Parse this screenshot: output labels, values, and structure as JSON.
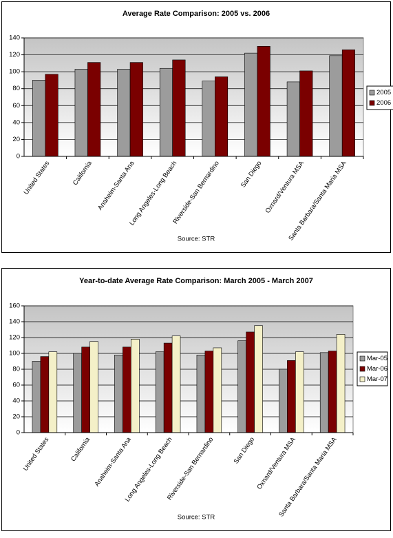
{
  "chart_data": [
    {
      "type": "bar",
      "title": "Average Rate Comparison: 2005 vs. 2006",
      "source": "Source: STR",
      "categories": [
        "United States",
        "California",
        "Anaheim-Santa Ana",
        "Long Angeles-Long Beach",
        "Riverside-San Bernardino",
        "San Diego",
        "Oxnard/Ventura MSA",
        "Santa Barbara/Santa Maria MSA"
      ],
      "series": [
        {
          "name": "2005",
          "color": "#9c9c9c",
          "values": [
            90,
            103,
            103,
            104,
            89,
            122,
            88,
            119
          ]
        },
        {
          "name": "2006",
          "color": "#7a0000",
          "values": [
            97,
            111,
            111,
            114,
            94,
            130,
            101,
            126
          ]
        }
      ],
      "ylim": [
        0,
        140
      ],
      "yticks": [
        0,
        20,
        40,
        60,
        80,
        100,
        120,
        140
      ],
      "grid": true,
      "legend": "right"
    },
    {
      "type": "bar",
      "title": "Year-to-date Average Rate Comparison: March 2005 - March 2007",
      "source": "Source: STR",
      "categories": [
        "United States",
        "California",
        "Anaheim-Santa Ana",
        "Long Angeles-Long Beach",
        "Riverside-San Bernardino",
        "San Diego",
        "Oxnard/Ventura MSA",
        "Santa Barbara/Santa Maria MSA"
      ],
      "series": [
        {
          "name": "Mar-05",
          "color": "#9c9c9c",
          "values": [
            90,
            100,
            98,
            102,
            98,
            116,
            80,
            101
          ]
        },
        {
          "name": "Mar-06",
          "color": "#7a0000",
          "values": [
            96,
            108,
            108,
            113,
            103,
            127,
            91,
            103
          ]
        },
        {
          "name": "Mar-07",
          "color": "#f4f0c8",
          "values": [
            102,
            115,
            118,
            122,
            107,
            135,
            102,
            124
          ]
        }
      ],
      "ylim": [
        0,
        160
      ],
      "yticks": [
        0,
        20,
        40,
        60,
        80,
        100,
        120,
        140,
        160
      ],
      "grid": true,
      "legend": "right"
    }
  ]
}
